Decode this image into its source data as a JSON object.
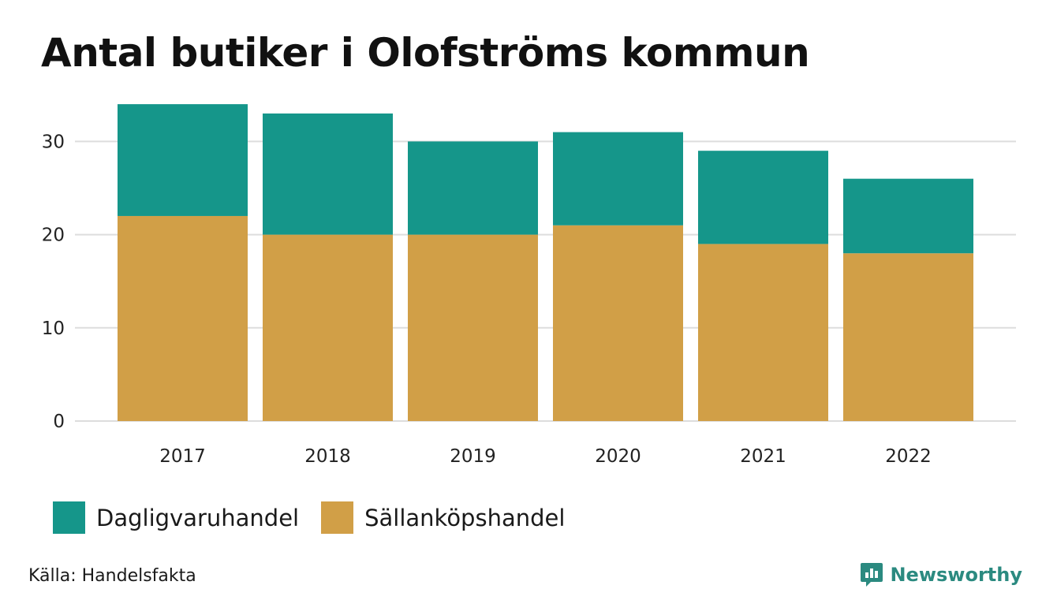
{
  "title": "Antal butiker i Olofströms kommun",
  "source": "Källa: Handelsfakta",
  "brand": "Newsworthy",
  "colors": {
    "daglig": "#15968a",
    "sallan": "#d19f47",
    "grid": "#dddddd",
    "brand": "#2b8a80"
  },
  "chart_data": {
    "type": "bar",
    "stacked": true,
    "categories": [
      "2017",
      "2018",
      "2019",
      "2020",
      "2021",
      "2022"
    ],
    "series": [
      {
        "name": "Sällanköpshandel",
        "values": [
          22,
          20,
          20,
          21,
          19,
          18
        ]
      },
      {
        "name": "Dagligvaruhandel",
        "values": [
          12,
          13,
          10,
          10,
          10,
          8
        ]
      }
    ],
    "yticks": [
      "0",
      "10",
      "20",
      "30"
    ],
    "ylim": [
      0,
      34
    ],
    "legend": [
      "Dagligvaruhandel",
      "Sällanköpshandel"
    ],
    "xlabel": "",
    "ylabel": ""
  }
}
